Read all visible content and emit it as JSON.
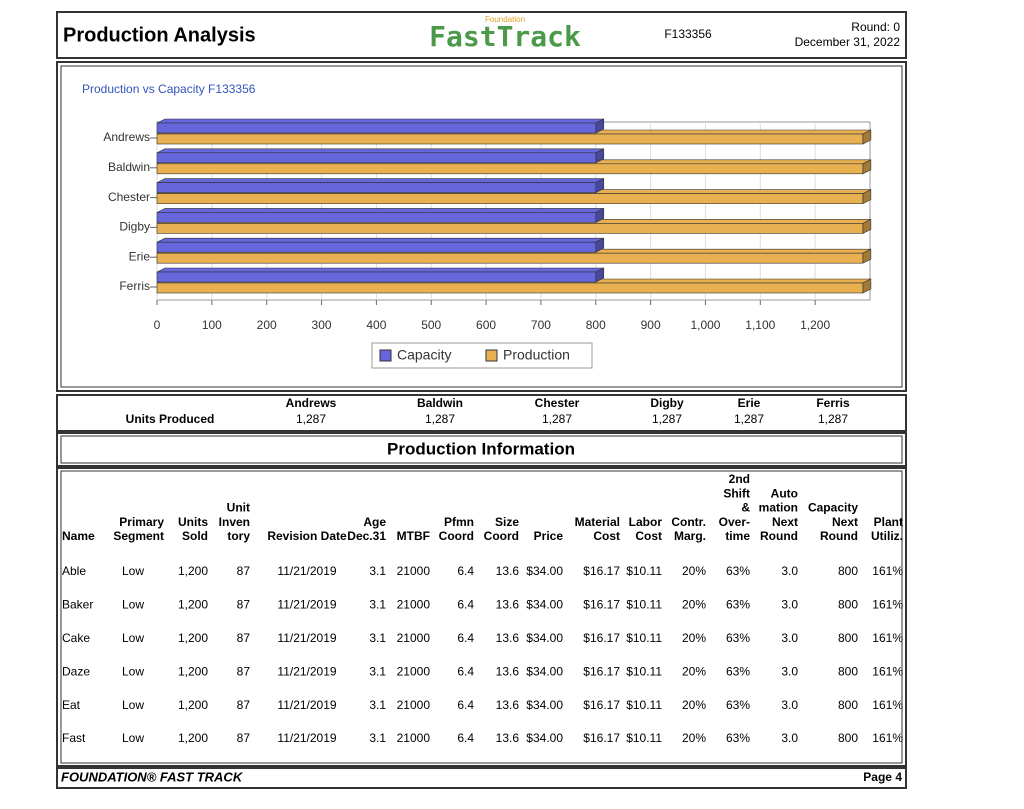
{
  "header": {
    "title": "Production Analysis",
    "logo_small": "Foundation",
    "logo": "FastTrack",
    "id": "F133356",
    "round": "Round: 0",
    "date": "December 31, 2022"
  },
  "chart_data": {
    "type": "hbar",
    "title": "Production vs Capacity F133356",
    "categories": [
      "Andrews",
      "Baldwin",
      "Chester",
      "Digby",
      "Erie",
      "Ferris"
    ],
    "series": [
      {
        "name": "Capacity",
        "color": "#6666dd",
        "values": [
          800,
          800,
          800,
          800,
          800,
          800
        ]
      },
      {
        "name": "Production",
        "color": "#e8b050",
        "values": [
          1287,
          1287,
          1287,
          1287,
          1287,
          1287
        ]
      }
    ],
    "xlim": [
      0,
      1300
    ],
    "xticks": [
      0,
      100,
      200,
      300,
      400,
      500,
      600,
      700,
      800,
      900,
      {
        "value": 1000,
        "label": "1,000"
      },
      {
        "value": 1100,
        "label": "1,100"
      },
      {
        "value": 1200,
        "label": "1,200"
      }
    ],
    "grid": true
  },
  "units": {
    "label": "Units Produced",
    "companies": [
      "Andrews",
      "Baldwin",
      "Chester",
      "Digby",
      "Erie",
      "Ferris"
    ],
    "values": [
      "1,287",
      "1,287",
      "1,287",
      "1,287",
      "1,287",
      "1,287"
    ]
  },
  "section_title": "Production Information",
  "table": {
    "headers": [
      [
        "Name"
      ],
      [
        "Primary",
        "Segment"
      ],
      [
        "Units",
        "Sold"
      ],
      [
        "Unit",
        "Inven",
        "tory"
      ],
      [
        "Revision Date"
      ],
      [
        "Age",
        "Dec.31"
      ],
      [
        "MTBF"
      ],
      [
        "Pfmn",
        "Coord"
      ],
      [
        "Size",
        "Coord"
      ],
      [
        "Price"
      ],
      [
        "Material",
        "Cost"
      ],
      [
        "Labor",
        "Cost"
      ],
      [
        "Contr.",
        "Marg."
      ],
      [
        "2nd",
        "Shift",
        "&",
        "Over-",
        "time"
      ],
      [
        "Auto",
        "mation",
        "Next",
        "Round"
      ],
      [
        "Capacity",
        "Next",
        "Round"
      ],
      [
        "Plant",
        "Utiliz."
      ]
    ],
    "rows": [
      [
        "Able",
        "Low",
        "1,200",
        "87",
        "11/21/2019",
        "3.1",
        "21000",
        "6.4",
        "13.6",
        "$34.00",
        "$16.17",
        "$10.11",
        "20%",
        "63%",
        "3.0",
        "800",
        "161%"
      ],
      [
        "Baker",
        "Low",
        "1,200",
        "87",
        "11/21/2019",
        "3.1",
        "21000",
        "6.4",
        "13.6",
        "$34.00",
        "$16.17",
        "$10.11",
        "20%",
        "63%",
        "3.0",
        "800",
        "161%"
      ],
      [
        "Cake",
        "Low",
        "1,200",
        "87",
        "11/21/2019",
        "3.1",
        "21000",
        "6.4",
        "13.6",
        "$34.00",
        "$16.17",
        "$10.11",
        "20%",
        "63%",
        "3.0",
        "800",
        "161%"
      ],
      [
        "Daze",
        "Low",
        "1,200",
        "87",
        "11/21/2019",
        "3.1",
        "21000",
        "6.4",
        "13.6",
        "$34.00",
        "$16.17",
        "$10.11",
        "20%",
        "63%",
        "3.0",
        "800",
        "161%"
      ],
      [
        "Eat",
        "Low",
        "1,200",
        "87",
        "11/21/2019",
        "3.1",
        "21000",
        "6.4",
        "13.6",
        "$34.00",
        "$16.17",
        "$10.11",
        "20%",
        "63%",
        "3.0",
        "800",
        "161%"
      ],
      [
        "Fast",
        "Low",
        "1,200",
        "87",
        "11/21/2019",
        "3.1",
        "21000",
        "6.4",
        "13.6",
        "$34.00",
        "$16.17",
        "$10.11",
        "20%",
        "63%",
        "3.0",
        "800",
        "161%"
      ]
    ]
  },
  "footer": {
    "left": "FOUNDATION® FAST TRACK",
    "right": "Page 4"
  }
}
